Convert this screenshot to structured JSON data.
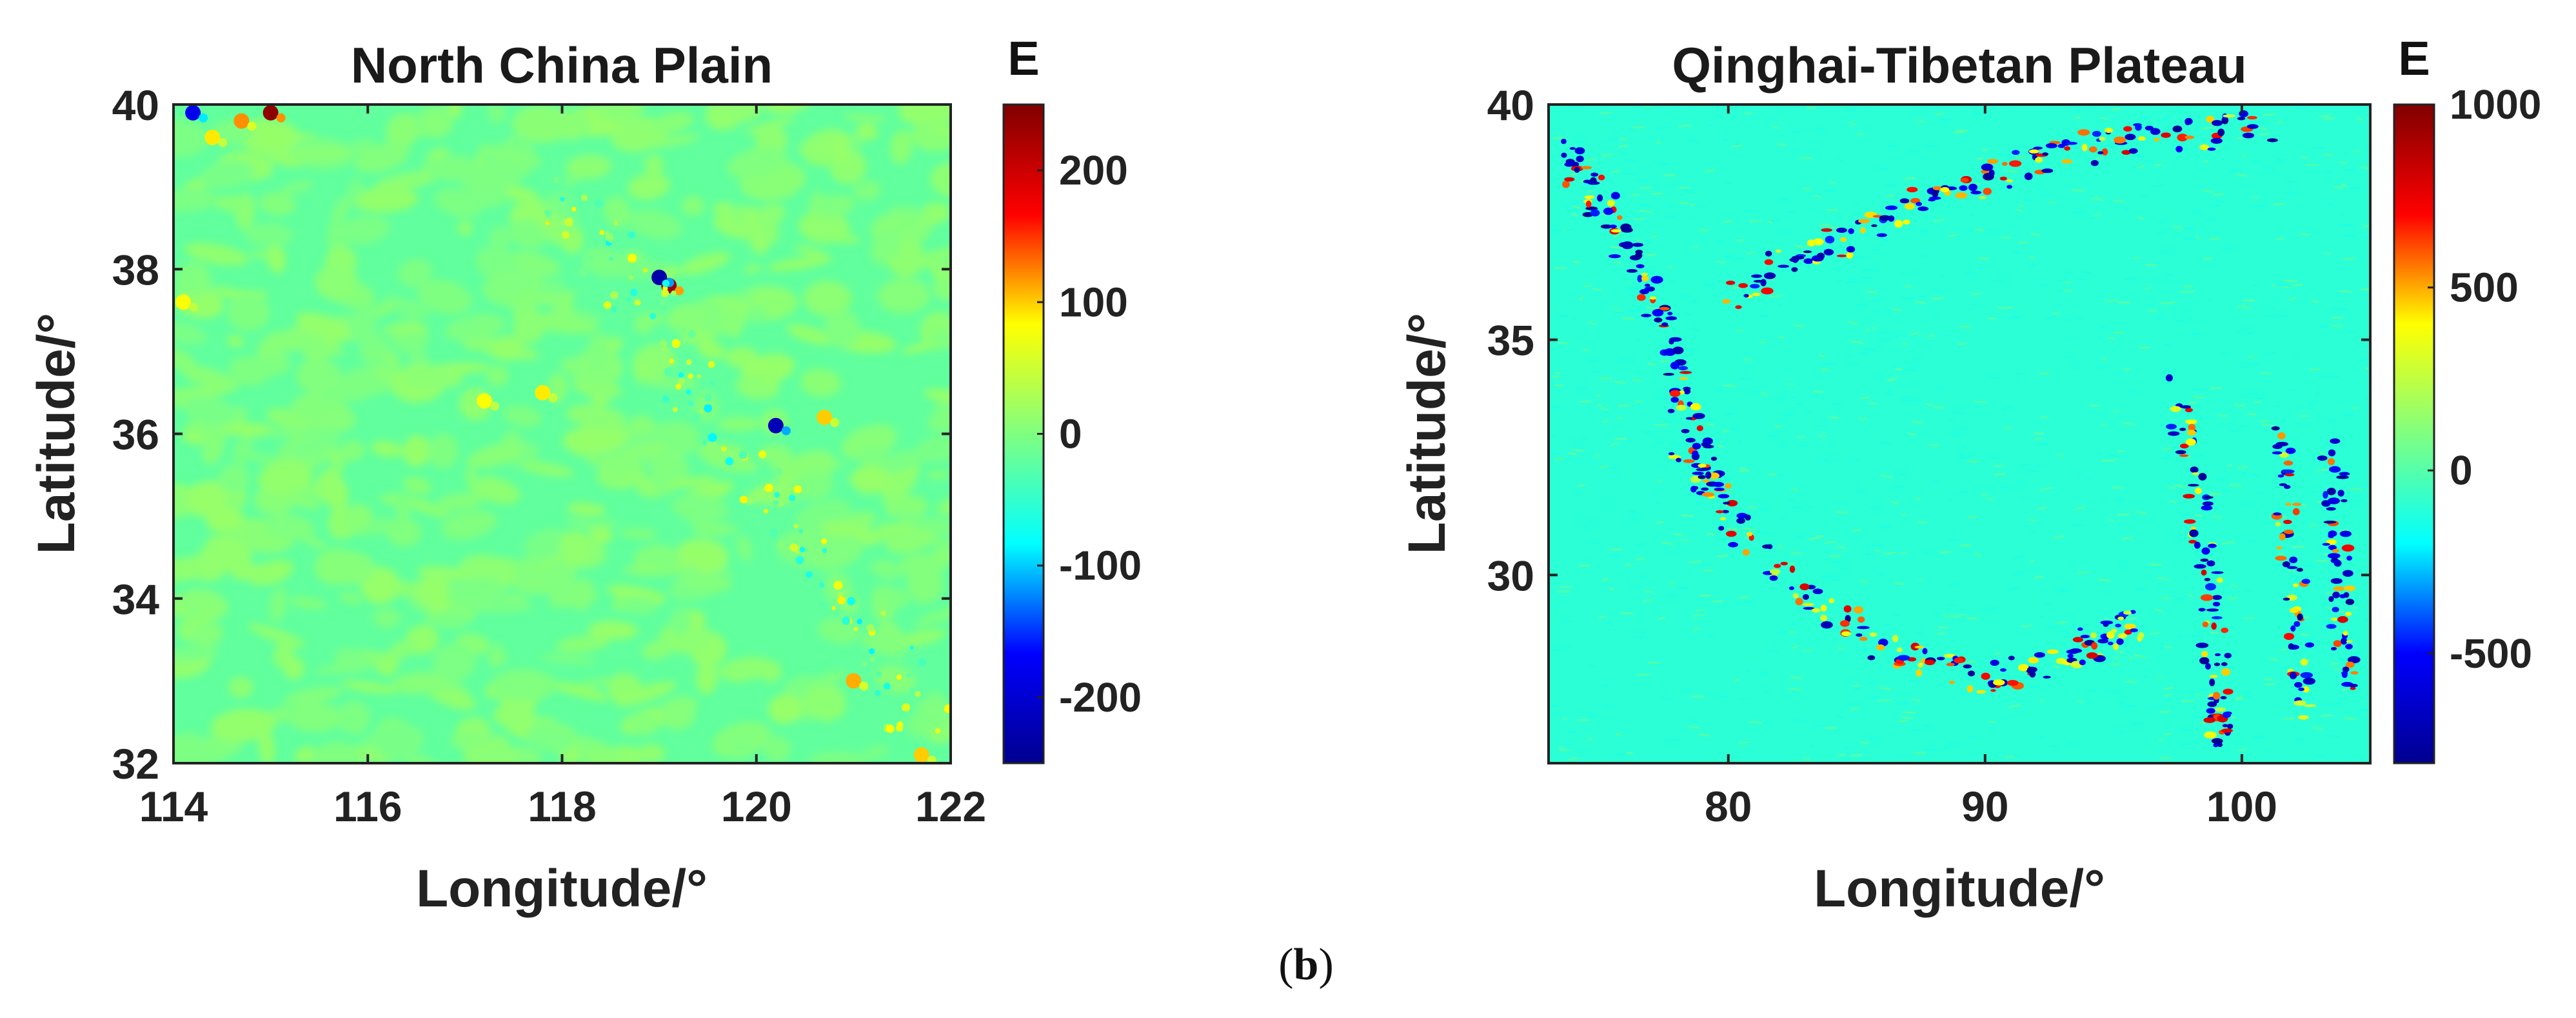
{
  "figure": {
    "caption_open": "(",
    "caption_letter": "b",
    "caption_close": ")"
  },
  "colors": {
    "jet_stops": [
      "#00008f",
      "#0000ff",
      "#00ffff",
      "#80ff80",
      "#ffff00",
      "#ff0000",
      "#800000"
    ],
    "background_cyan": "#19e6f2",
    "background_green": "#2ef07a"
  },
  "chart_data": [
    {
      "type": "heatmap",
      "title": "North China Plain",
      "xlabel": "Longitude/°",
      "ylabel": "Latitude/°",
      "xlim": [
        114,
        122
      ],
      "ylim": [
        32,
        40
      ],
      "xticks": [
        114,
        116,
        118,
        120,
        122
      ],
      "xtick_labels": [
        "114",
        "116",
        "118",
        "120",
        "122"
      ],
      "yticks": [
        32,
        34,
        36,
        38,
        40
      ],
      "ytick_labels": [
        "32",
        "34",
        "36",
        "38",
        "40"
      ],
      "colorbar": {
        "title": "E",
        "range": [
          -250,
          250
        ],
        "ticks": [
          -200,
          -100,
          0,
          100,
          200
        ],
        "tick_labels": [
          "-200",
          "-100",
          "0",
          "100",
          "200"
        ]
      },
      "pattern": {
        "base": -20,
        "patches": 520,
        "anomalies": [
          {
            "lon": 115.0,
            "lat": 39.9,
            "value": 240
          },
          {
            "lon": 114.7,
            "lat": 39.8,
            "value": 120
          },
          {
            "lon": 114.4,
            "lat": 39.6,
            "value": 90
          },
          {
            "lon": 114.2,
            "lat": 39.9,
            "value": -180
          },
          {
            "lon": 114.1,
            "lat": 37.6,
            "value": 80
          },
          {
            "lon": 119.1,
            "lat": 37.8,
            "value": 230
          },
          {
            "lon": 119.0,
            "lat": 37.9,
            "value": -230
          },
          {
            "lon": 117.2,
            "lat": 36.4,
            "value": 80
          },
          {
            "lon": 117.8,
            "lat": 36.5,
            "value": 90
          },
          {
            "lon": 120.2,
            "lat": 36.1,
            "value": -220
          },
          {
            "lon": 120.7,
            "lat": 36.2,
            "value": 100
          },
          {
            "lon": 121.0,
            "lat": 33.0,
            "value": 110
          },
          {
            "lon": 121.7,
            "lat": 32.1,
            "value": 100
          }
        ]
      }
    },
    {
      "type": "heatmap",
      "title": "Qinghai-Tibetan Plateau",
      "xlabel": "Longitude/°",
      "ylabel": "Latitude/°",
      "xlim": [
        73,
        105
      ],
      "ylim": [
        26,
        40
      ],
      "xticks": [
        80,
        90,
        100
      ],
      "xtick_labels": [
        "80",
        "90",
        "100"
      ],
      "yticks": [
        30,
        35,
        40
      ],
      "ytick_labels": [
        "30",
        "35",
        "40"
      ],
      "colorbar": {
        "title": "E",
        "range": [
          -800,
          1000
        ],
        "ticks": [
          -500,
          0,
          500,
          1000
        ],
        "tick_labels": [
          "-500",
          "0",
          "500",
          "1000"
        ]
      },
      "pattern": {
        "base": -100,
        "features": [
          {
            "name": "western-ridge",
            "path": [
              [
                73.5,
                39.0
              ],
              [
                75.5,
                37.5
              ],
              [
                77.5,
                35.5
              ],
              [
                78.5,
                33.0
              ],
              [
                80.0,
                31.5
              ]
            ]
          },
          {
            "name": "himalaya-arc",
            "path": [
              [
                78.0,
                32.5
              ],
              [
                82.0,
                30.0
              ],
              [
                86.0,
                28.5
              ],
              [
                90.0,
                27.7
              ],
              [
                94.0,
                28.5
              ],
              [
                96.0,
                29.0
              ]
            ]
          },
          {
            "name": "north-rim",
            "path": [
              [
                80.0,
                36.0
              ],
              [
                84.0,
                37.0
              ],
              [
                88.0,
                38.0
              ],
              [
                92.0,
                38.8
              ],
              [
                96.0,
                39.3
              ],
              [
                101.0,
                39.5
              ]
            ]
          },
          {
            "name": "hengduan-1",
            "path": [
              [
                97.5,
                34.0
              ],
              [
                98.5,
                31.0
              ],
              [
                99.0,
                28.0
              ],
              [
                99.2,
                26.2
              ]
            ]
          },
          {
            "name": "hengduan-2",
            "path": [
              [
                101.5,
                33.0
              ],
              [
                102.0,
                30.0
              ],
              [
                102.5,
                27.0
              ]
            ]
          },
          {
            "name": "hengduan-3",
            "path": [
              [
                103.5,
                32.5
              ],
              [
                103.8,
                30.0
              ],
              [
                104.0,
                27.5
              ]
            ]
          }
        ]
      }
    }
  ]
}
